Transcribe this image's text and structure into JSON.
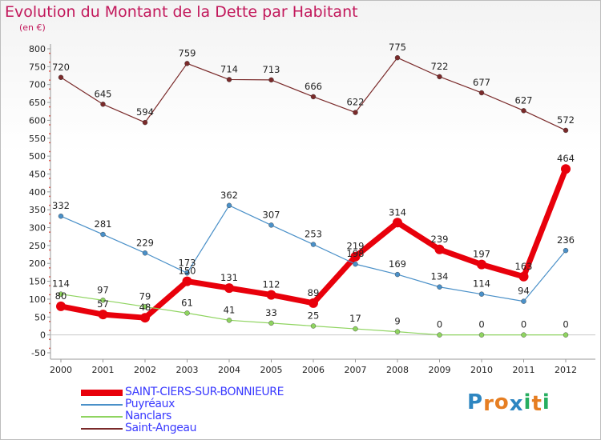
{
  "header": {
    "title": "Evolution du Montant de la Dette par Habitant",
    "subtitle": "(en €)"
  },
  "logo": {
    "letters": [
      {
        "ch": "P",
        "color": "#2e86c1"
      },
      {
        "ch": "r",
        "color": "#e67e22"
      },
      {
        "ch": "o",
        "color": "#e67e22"
      },
      {
        "ch": "x",
        "color": "#2e86c1"
      },
      {
        "ch": "i",
        "color": "#27ae60"
      },
      {
        "ch": "t",
        "color": "#e67e22"
      },
      {
        "ch": "i",
        "color": "#27ae60"
      }
    ]
  },
  "chart_data": {
    "type": "line",
    "title": "Evolution du Montant de la Dette par Habitant",
    "subtitle": "(en €)",
    "x": [
      "2000",
      "2001",
      "2002",
      "2003",
      "2004",
      "2005",
      "2006",
      "2007",
      "2008",
      "2009",
      "2010",
      "2011",
      "2012"
    ],
    "ylim": [
      -50,
      800
    ],
    "yticks": [
      -50,
      0,
      50,
      100,
      150,
      200,
      250,
      300,
      350,
      400,
      450,
      500,
      550,
      600,
      650,
      700,
      750,
      800
    ],
    "grid": false,
    "legend_position": "bottom-left",
    "series": [
      {
        "name": "SAINT-CIERS-SUR-BONNIEURE",
        "color": "#e8000b",
        "values": [
          80,
          57,
          48,
          150,
          131,
          112,
          89,
          219,
          314,
          239,
          197,
          163,
          464
        ]
      },
      {
        "name": "Puyréaux",
        "color": "#4a90c8",
        "values": [
          332,
          281,
          229,
          173,
          362,
          307,
          253,
          198,
          169,
          134,
          114,
          94,
          236
        ]
      },
      {
        "name": "Nanclars",
        "color": "#8fd460",
        "values": [
          114,
          97,
          79,
          61,
          41,
          33,
          25,
          17,
          9,
          0,
          0,
          0,
          0
        ]
      },
      {
        "name": "Saint-Angeau",
        "color": "#7a2a2a",
        "values": [
          720,
          645,
          594,
          759,
          714,
          713,
          666,
          622,
          775,
          722,
          677,
          627,
          572
        ]
      }
    ]
  }
}
